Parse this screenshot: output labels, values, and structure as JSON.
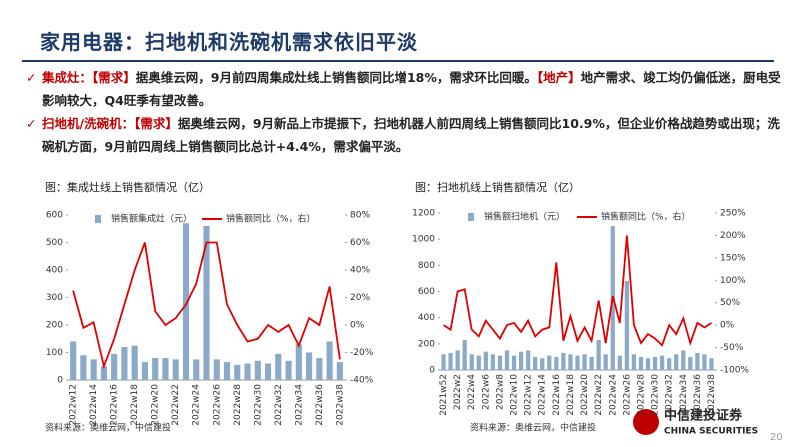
{
  "header": {
    "title": "家用电器：扫地机和洗碗机需求依旧平淡"
  },
  "bullets": [
    {
      "label": "集成灶：",
      "tag": "【需求】",
      "text": "据奥维云网，9月前四周集成灶线上销售额同比增18%，需求环比回暖。",
      "tag2": "【地产】",
      "text2": "地产需求、竣工均仍偏低迷，厨电受影响较大，Q4旺季有望改善。"
    },
    {
      "label": "扫地机/洗碗机：",
      "tag": "【需求】",
      "text": "据奥维云网，9月新品上市提振下，扫地机器人前四周线上销售额同比10.9%，但企业价格战趋势或出现；洗碗机方面，9月前四周线上销售额同比总计+4.4%，需求偏平淡。"
    }
  ],
  "chart_data": [
    {
      "type": "combo",
      "title": "图：集成灶线上销售额情况（亿）",
      "source": "资料来源：奥维云网，中信建投",
      "categories": [
        "2022w12",
        null,
        "2022w14",
        null,
        "2022w16",
        null,
        "2022w18",
        null,
        "2022w20",
        null,
        "2022w22",
        null,
        "2022w24",
        null,
        "2022w26",
        null,
        "2022w28",
        null,
        "2022w30",
        null,
        "2022w32",
        null,
        "2022w34",
        null,
        "2022w36",
        null,
        "2022w38"
      ],
      "series": [
        {
          "name": "销售额集成灶（元）",
          "type": "bar",
          "color": "#8ba9c9",
          "values": [
            140,
            90,
            75,
            50,
            95,
            120,
            125,
            65,
            80,
            80,
            75,
            570,
            75,
            560,
            75,
            65,
            55,
            60,
            70,
            60,
            95,
            70,
            130,
            100,
            80,
            140,
            65
          ]
        },
        {
          "name": "销售额同比（%，右）",
          "type": "line",
          "axis": "y2",
          "color": "#e00000",
          "values": [
            25,
            -2,
            2,
            -30,
            -10,
            15,
            40,
            60,
            10,
            0,
            5,
            15,
            30,
            60,
            60,
            15,
            0,
            -12,
            -10,
            0,
            -5,
            0,
            -15,
            5,
            0,
            28,
            -25
          ]
        }
      ],
      "ylim": [
        0,
        600
      ],
      "yticks": [
        0,
        100,
        200,
        300,
        400,
        500,
        600
      ],
      "y2lim": [
        -40,
        80
      ],
      "y2ticks": [
        {
          "value": -40,
          "label": "-40%"
        },
        {
          "value": -20,
          "label": "-20%"
        },
        {
          "value": 0,
          "label": "0%"
        },
        {
          "value": 20,
          "label": "20%"
        },
        {
          "value": 40,
          "label": "40%"
        },
        {
          "value": 60,
          "label": "60%"
        },
        {
          "value": 80,
          "label": "80%"
        }
      ]
    },
    {
      "type": "combo",
      "title": "图：扫地机线上销售额情况（亿）",
      "source": "资料来源：奥维云网，中信建投",
      "categories": [
        "2021w52",
        null,
        "2022w2",
        null,
        "2022w4",
        null,
        "2022w6",
        null,
        "2022w8",
        null,
        "2022w10",
        null,
        "2022w12",
        null,
        "2022w14",
        null,
        "2022w16",
        null,
        "2022w18",
        null,
        "2022w20",
        null,
        "2022w22",
        null,
        "2022w24",
        null,
        "2022w26",
        null,
        "2022w28",
        null,
        "2022w30",
        null,
        "2022w32",
        null,
        "2022w34",
        null,
        "2022w36",
        null,
        "2022w38"
      ],
      "series": [
        {
          "name": "销售额扫地机（元）",
          "type": "bar",
          "color": "#8ba9c9",
          "values": [
            120,
            130,
            150,
            230,
            120,
            110,
            140,
            120,
            110,
            150,
            110,
            140,
            150,
            100,
            90,
            110,
            100,
            130,
            120,
            110,
            120,
            100,
            230,
            120,
            1100,
            110,
            680,
            120,
            100,
            90,
            100,
            110,
            90,
            120,
            150,
            100,
            130,
            120,
            90
          ]
        },
        {
          "name": "销售额同比（%，右）",
          "type": "line",
          "axis": "y2",
          "color": "#e00000",
          "values": [
            0,
            -10,
            75,
            80,
            -10,
            -25,
            10,
            -10,
            -30,
            0,
            5,
            -15,
            10,
            -25,
            -10,
            -5,
            140,
            -35,
            20,
            -35,
            -5,
            -35,
            55,
            -40,
            65,
            5,
            200,
            0,
            -40,
            -20,
            -30,
            -45,
            0,
            -20,
            15,
            -40,
            5,
            -5,
            5
          ]
        }
      ],
      "ylim": [
        0,
        1200
      ],
      "yticks": [
        0,
        200,
        400,
        600,
        800,
        1000,
        1200
      ],
      "y2lim": [
        -100,
        250
      ],
      "y2ticks": [
        {
          "value": -100,
          "label": "-100%"
        },
        {
          "value": -50,
          "label": "-50%"
        },
        {
          "value": 0,
          "label": "0%"
        },
        {
          "value": 50,
          "label": "50%"
        },
        {
          "value": 100,
          "label": "100%"
        },
        {
          "value": 150,
          "label": "150%"
        },
        {
          "value": 200,
          "label": "200%"
        },
        {
          "value": 250,
          "label": "250%"
        }
      ]
    }
  ],
  "logo": {
    "name": "中信建投证券",
    "english": "CHINA SECURITIES"
  },
  "page_number": "20"
}
